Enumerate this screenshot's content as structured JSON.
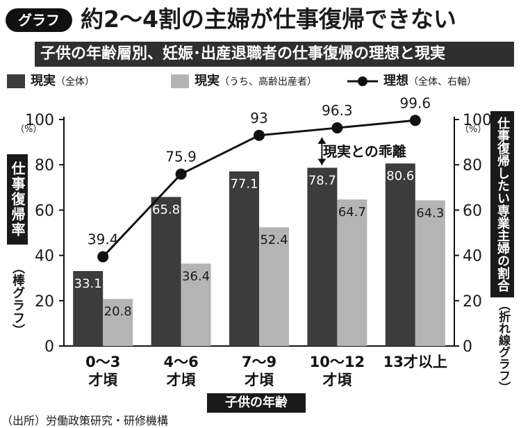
{
  "header": {
    "badge": "グラフ",
    "title": "約2～4割の主婦が仕事復帰できない",
    "subtitle": "子供の年齢層別、妊娠･出産退職者の仕事復帰の理想と現実"
  },
  "legend": {
    "item1_main": "現実",
    "item1_sub": "（全体）",
    "item2_main": "現実",
    "item2_sub": "（うち、高齢出産者）",
    "item3_main": "理想",
    "item3_sub": "（全体、右軸）"
  },
  "left_axis": {
    "title": "仕事復帰率",
    "subtitle": "（棒グラフ）",
    "unit": "（%）"
  },
  "right_axis": {
    "title": "仕事復帰したい専業主婦の割合",
    "subtitle": "（折れ線グラフ）",
    "unit": "（%）"
  },
  "x_axis": {
    "title": "子供の年齢"
  },
  "annotation": "現実との乖離",
  "source": "（出所）労働政策研究・研修機構",
  "colors": {
    "actual_all": "#3c3c3c",
    "actual_older": "#b4b4b4",
    "ideal": "#111111"
  },
  "chart_data": {
    "type": "bar",
    "categories": [
      [
        "0～3",
        "才頃"
      ],
      [
        "4～6",
        "才頃"
      ],
      [
        "7～9",
        "才頃"
      ],
      [
        "10～12",
        "才頃"
      ],
      [
        "13才以上"
      ]
    ],
    "series": [
      {
        "name": "現実（全体）",
        "kind": "bar",
        "values": [
          33.1,
          65.8,
          77.1,
          78.7,
          80.6
        ]
      },
      {
        "name": "現実（うち、高齢出産者）",
        "kind": "bar",
        "values": [
          20.8,
          36.4,
          52.4,
          64.7,
          64.3
        ]
      },
      {
        "name": "理想（全体、右軸）",
        "kind": "line",
        "axis": "right",
        "values": [
          39.4,
          75.9,
          93,
          96.3,
          99.6
        ]
      }
    ],
    "ylim": [
      0,
      100
    ],
    "yticks": [
      0,
      20,
      40,
      60,
      80,
      100
    ],
    "y2lim": [
      0,
      100
    ],
    "y2ticks": [
      0,
      20,
      40,
      60,
      80,
      100
    ],
    "grid": false,
    "legend_position": "top"
  }
}
